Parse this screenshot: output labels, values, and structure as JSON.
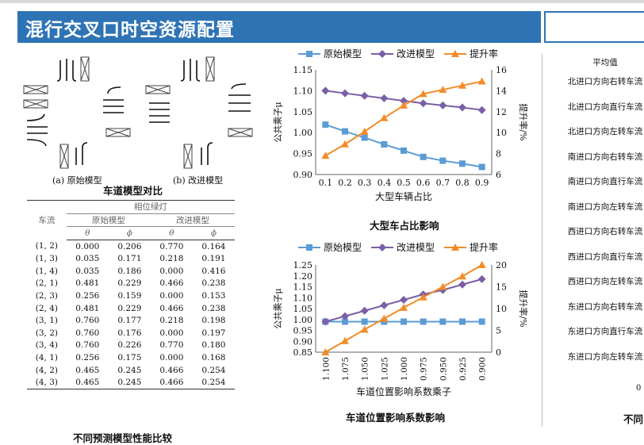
{
  "header": {
    "title": "混行交叉口时空资源配置"
  },
  "lane_figure": {
    "caption": "车道模型对比",
    "label_a": "(a) 原始模型",
    "label_b": "(b) 改进模型"
  },
  "table": {
    "caption": "不同预测模型性能比较",
    "col_flow": "车流",
    "col_phase": "相位绿灯",
    "group1": "原始模型",
    "group2": "改进模型",
    "sym_theta": "θ",
    "sym_phi": "ϕ",
    "rows": [
      [
        "(1, 2)",
        "0.000",
        "0.206",
        "0.770",
        "0.164"
      ],
      [
        "(1, 3)",
        "0.035",
        "0.171",
        "0.218",
        "0.191"
      ],
      [
        "(1, 4)",
        "0.035",
        "0.186",
        "0.000",
        "0.416"
      ],
      [
        "(2, 1)",
        "0.481",
        "0.229",
        "0.466",
        "0.238"
      ],
      [
        "(2, 3)",
        "0.256",
        "0.159",
        "0.000",
        "0.153"
      ],
      [
        "(2, 4)",
        "0.481",
        "0.229",
        "0.466",
        "0.238"
      ],
      [
        "(3, 1)",
        "0.760",
        "0.177",
        "0.218",
        "0.198"
      ],
      [
        "(3, 2)",
        "0.760",
        "0.176",
        "0.000",
        "0.197"
      ],
      [
        "(3, 4)",
        "0.760",
        "0.226",
        "0.770",
        "0.180"
      ],
      [
        "(4, 1)",
        "0.256",
        "0.175",
        "0.000",
        "0.168"
      ],
      [
        "(4, 2)",
        "0.465",
        "0.245",
        "0.466",
        "0.254"
      ],
      [
        "(4, 3)",
        "0.465",
        "0.245",
        "0.466",
        "0.254"
      ]
    ]
  },
  "chart_data": [
    {
      "type": "line",
      "title": "大型车占比影响",
      "xlabel": "大型车辆占比",
      "ylabel": "公共乘子μ",
      "y2label": "提升率/%",
      "x": [
        0.1,
        0.2,
        0.3,
        0.4,
        0.5,
        0.6,
        0.7,
        0.8,
        0.9
      ],
      "x_ticks": [
        "0.1",
        "0.2",
        "0.3",
        "0.4",
        "0.5",
        "0.6",
        "0.7",
        "0.8",
        "0.9"
      ],
      "ylim": [
        0.9,
        1.15
      ],
      "y_ticks": [
        "0.90",
        "0.95",
        "1.00",
        "1.05",
        "1.10",
        "1.15"
      ],
      "y2lim": [
        6,
        16
      ],
      "y2_ticks": [
        "6",
        "8",
        "10",
        "12",
        "14",
        "16"
      ],
      "legend": "top",
      "series": [
        {
          "name": "原始模型",
          "axis": "left",
          "color": "#5b9bd5",
          "marker": "square",
          "values": [
            1.019,
            1.003,
            0.988,
            0.972,
            0.957,
            0.942,
            0.933,
            0.926,
            0.918
          ]
        },
        {
          "name": "改进模型",
          "axis": "left",
          "color": "#7a5fa6",
          "marker": "diamond",
          "values": [
            1.1,
            1.094,
            1.088,
            1.082,
            1.076,
            1.07,
            1.065,
            1.06,
            1.054
          ]
        },
        {
          "name": "提升率",
          "axis": "right",
          "color": "#f28c28",
          "marker": "triangle",
          "values": [
            7.8,
            8.9,
            10.1,
            11.4,
            12.6,
            13.7,
            14.1,
            14.5,
            14.9
          ]
        }
      ]
    },
    {
      "type": "line",
      "title": "车道位置影响系数影响",
      "xlabel": "车道位置影响系数乘子",
      "ylabel": "公共乘子μ",
      "y2label": "提升率/%",
      "x": [
        1.1,
        1.075,
        1.05,
        1.025,
        1.0,
        0.975,
        0.95,
        0.925,
        0.9
      ],
      "x_ticks": [
        "1.100",
        "1.075",
        "1.050",
        "1.025",
        "1.000",
        "0.975",
        "0.950",
        "0.925",
        "0.900"
      ],
      "ylim": [
        0.85,
        1.25
      ],
      "y_ticks": [
        "0.85",
        "0.90",
        "0.95",
        "1.00",
        "1.05",
        "1.10",
        "1.15",
        "1.20",
        "1.25"
      ],
      "y2lim": [
        0,
        20
      ],
      "y2_ticks": [
        "0",
        "5",
        "10",
        "15",
        "20"
      ],
      "legend": "top",
      "series": [
        {
          "name": "原始模型",
          "axis": "left",
          "color": "#5b9bd5",
          "marker": "square",
          "values": [
            0.99,
            0.99,
            0.99,
            0.99,
            0.99,
            0.99,
            0.99,
            0.99,
            0.99
          ]
        },
        {
          "name": "改进模型",
          "axis": "left",
          "color": "#7a5fa6",
          "marker": "diamond",
          "values": [
            0.99,
            1.015,
            1.04,
            1.065,
            1.09,
            1.115,
            1.135,
            1.16,
            1.185
          ]
        },
        {
          "name": "提升率",
          "axis": "right",
          "color": "#f28c28",
          "marker": "triangle",
          "values": [
            0.0,
            2.6,
            5.2,
            7.7,
            10.2,
            12.6,
            15.0,
            17.4,
            20.0
          ]
        }
      ]
    }
  ],
  "right_panel": {
    "header": "平均值",
    "rows": [
      "北进口方向右转车流",
      "北进口方向直行车流",
      "北进口方向左转车流",
      "南进口方向右转车流",
      "南进口方向直行车流",
      "南进口方向左转车流",
      "西进口方向右转车流",
      "西进口方向直行车流",
      "西进口方向左转车流",
      "东进口方向右转车流",
      "东进口方向直行车流",
      "东进口方向左转车流"
    ],
    "axis_zero": "0",
    "caption_partial": "不同"
  }
}
